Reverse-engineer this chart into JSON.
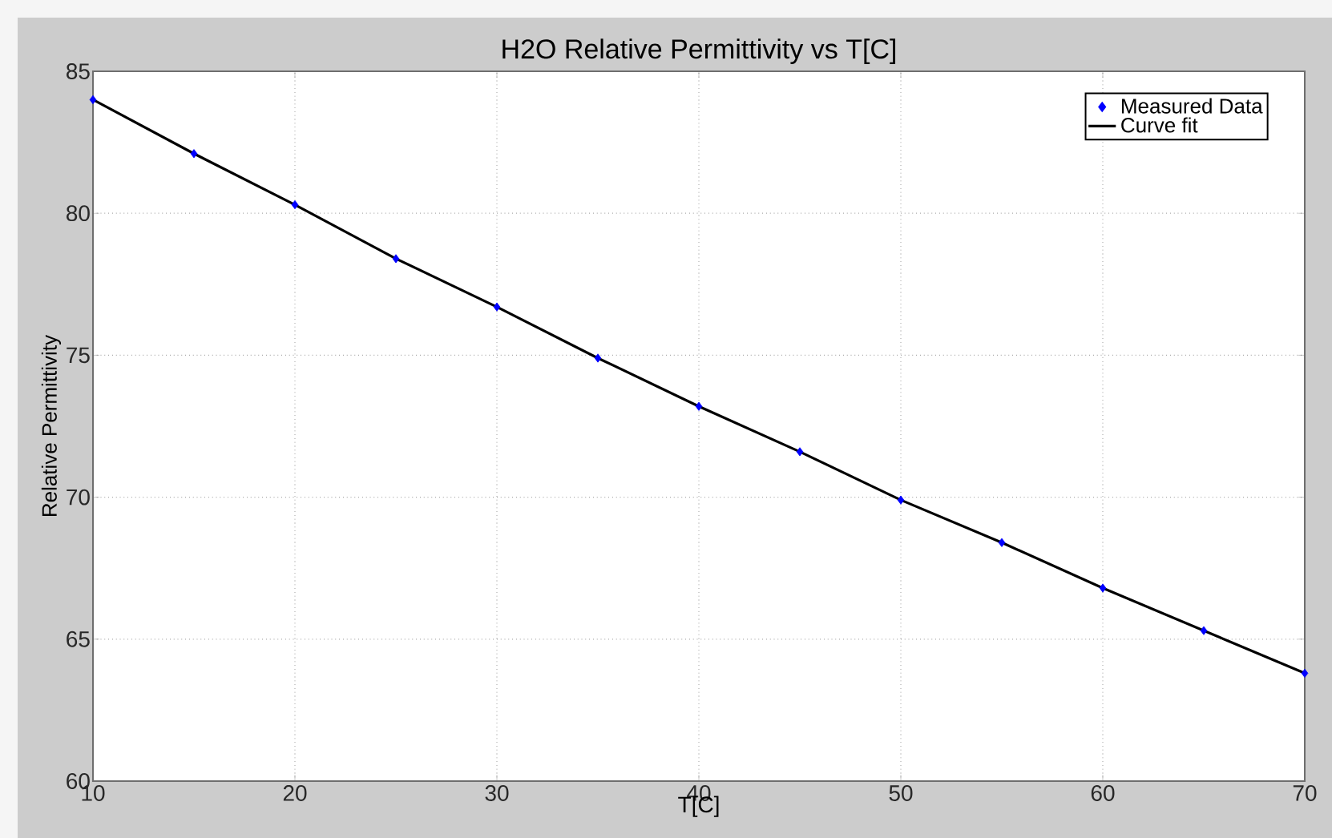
{
  "chart_data": {
    "type": "scatter",
    "title": "H2O Relative Permittivity vs T[C]",
    "xlabel": "T[C]",
    "ylabel": "Relative Permittivity",
    "xlim": [
      10,
      70
    ],
    "xticks": [
      10,
      20,
      30,
      40,
      50,
      60,
      70
    ],
    "ylim": [
      60,
      85
    ],
    "yticks": [
      60,
      65,
      70,
      75,
      80,
      85
    ],
    "grid": true,
    "legend": "top right",
    "series": [
      {
        "name": "Measured Data",
        "marker": "diamond",
        "color": "#0000ff",
        "x": [
          10,
          15,
          20,
          25,
          30,
          35,
          40,
          45,
          50,
          55,
          60,
          65,
          70
        ],
        "values": [
          84.0,
          82.1,
          80.3,
          78.4,
          76.7,
          74.9,
          73.2,
          71.6,
          69.9,
          68.4,
          66.8,
          65.3,
          63.8
        ]
      },
      {
        "name": "Curve fit",
        "type": "line",
        "marker": "none",
        "line_style": "solid",
        "color": "#000000",
        "x": [
          10,
          15,
          20,
          25,
          30,
          35,
          40,
          45,
          50,
          55,
          60,
          65,
          70
        ],
        "values": [
          84.0,
          82.1,
          80.3,
          78.4,
          76.7,
          74.9,
          73.2,
          71.6,
          69.9,
          68.4,
          66.8,
          65.3,
          63.8
        ]
      }
    ]
  }
}
